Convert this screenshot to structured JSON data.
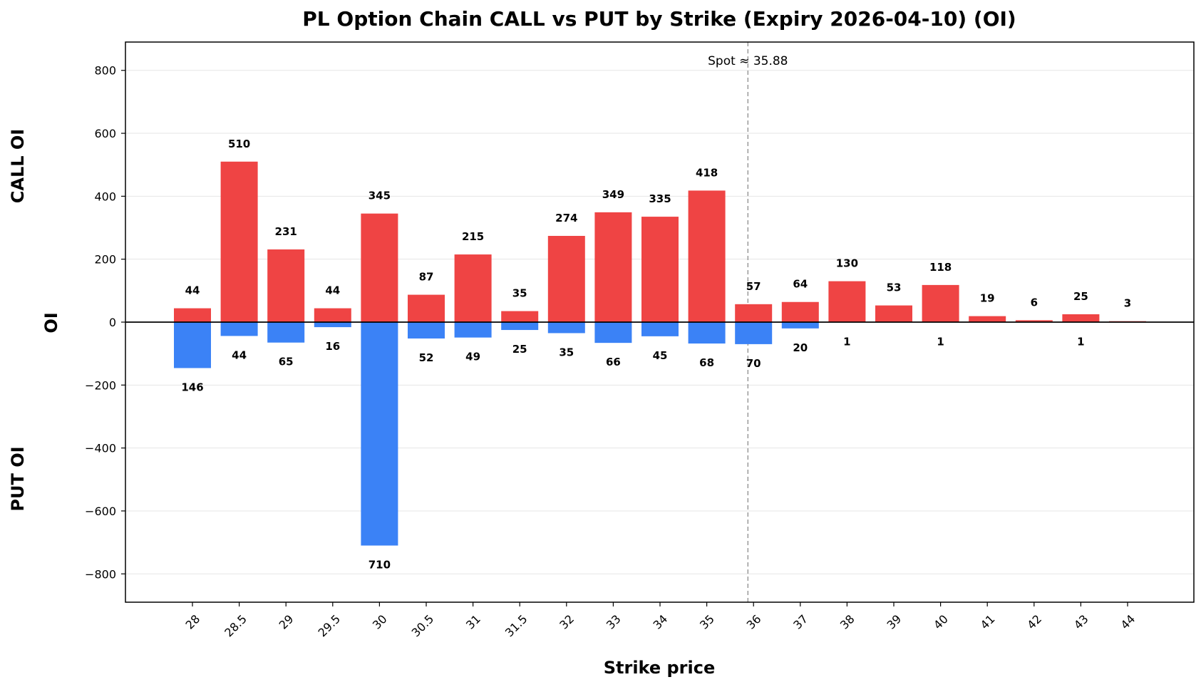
{
  "chart_data": {
    "type": "bar",
    "title": "PL Option Chain CALL vs PUT by Strike (Expiry 2026-04-10) (OI)",
    "xlabel": "Strike price",
    "ylabel": "OI",
    "side_labels": {
      "top": "CALL OI",
      "bottom": "PUT OI"
    },
    "categories": [
      "28",
      "28.5",
      "29",
      "29.5",
      "30",
      "30.5",
      "31",
      "31.5",
      "32",
      "33",
      "34",
      "35",
      "36",
      "37",
      "38",
      "39",
      "40",
      "41",
      "42",
      "43",
      "44"
    ],
    "series": [
      {
        "name": "CALL OI",
        "color": "#ef4444",
        "values": [
          44,
          510,
          231,
          44,
          345,
          87,
          215,
          35,
          274,
          349,
          335,
          418,
          57,
          64,
          130,
          53,
          118,
          19,
          6,
          25,
          3
        ]
      },
      {
        "name": "PUT OI",
        "color": "#3b82f6",
        "values": [
          146,
          44,
          65,
          16,
          710,
          52,
          49,
          25,
          35,
          66,
          45,
          68,
          70,
          20,
          1,
          0,
          1,
          0,
          0,
          1,
          0
        ]
      }
    ],
    "put_labels": [
      "146",
      "44",
      "65",
      "16",
      "710",
      "52",
      "49",
      "25",
      "35",
      "66",
      "45",
      "68",
      "70",
      "20",
      "1",
      "",
      "1",
      "",
      "",
      "1",
      ""
    ],
    "yticks": [
      800,
      600,
      400,
      200,
      0,
      -200,
      -400,
      -600,
      -800
    ],
    "ytick_labels": [
      "800",
      "600",
      "400",
      "200",
      "0",
      "−200",
      "−400",
      "−600",
      "−800"
    ],
    "ylim": [
      -890,
      890
    ],
    "spot": {
      "value": 35.88,
      "label": "Spot ≈ 35.88"
    },
    "grid": true,
    "zero_line": true
  }
}
